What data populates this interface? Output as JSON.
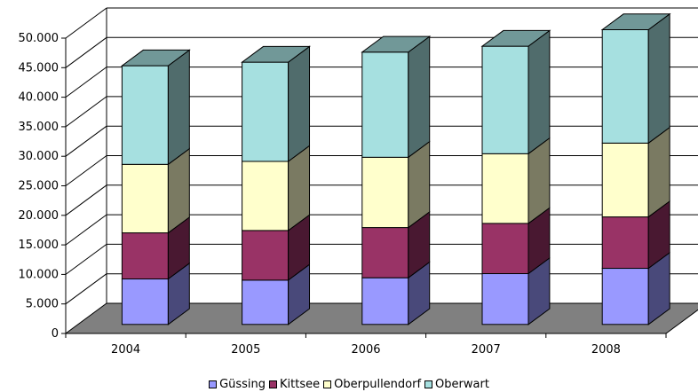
{
  "chart_data": {
    "type": "bar",
    "stacked": true,
    "three_d": true,
    "title": "",
    "xlabel": "",
    "ylabel": "",
    "categories": [
      "2004",
      "2005",
      "2006",
      "2007",
      "2008"
    ],
    "series": [
      {
        "name": "Güssing",
        "color": "#9999FF",
        "values": [
          7700,
          7500,
          7900,
          8600,
          9500
        ]
      },
      {
        "name": "Kittsee",
        "color": "#993366",
        "values": [
          7800,
          8400,
          8500,
          8500,
          8700
        ]
      },
      {
        "name": "Oberpullendorf",
        "color": "#FFFFCC",
        "values": [
          11600,
          11700,
          11900,
          11800,
          12500
        ]
      },
      {
        "name": "Oberwart",
        "color": "#A6E0E0",
        "values": [
          16700,
          16800,
          17800,
          18200,
          19200
        ]
      }
    ],
    "ylim": [
      0,
      50000
    ],
    "yticks": [
      0,
      5000,
      10000,
      15000,
      20000,
      25000,
      30000,
      35000,
      40000,
      45000,
      50000
    ],
    "ytick_labels": [
      "0",
      "5.000",
      "10.000",
      "15.000",
      "20.000",
      "25.000",
      "30.000",
      "35.000",
      "40.000",
      "45.000",
      "50.000"
    ],
    "grid": true,
    "floor_color": "#808080",
    "legend_position": "bottom"
  }
}
